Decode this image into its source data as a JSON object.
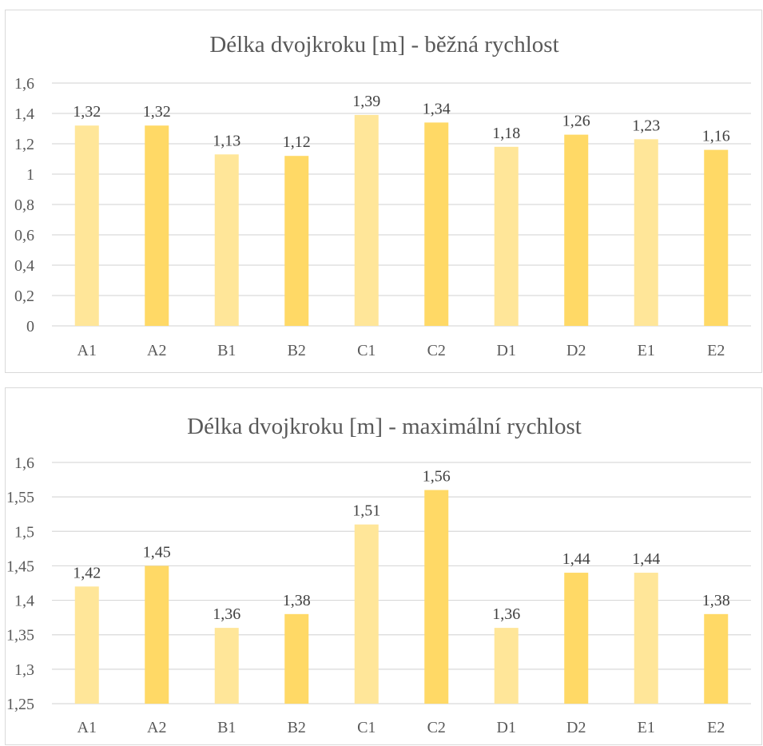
{
  "chart_data": [
    {
      "type": "bar",
      "title": "Délka dvojkroku [m] - běžná rychlost",
      "xlabel": "",
      "ylabel": "",
      "categories": [
        "A1",
        "A2",
        "B1",
        "B2",
        "C1",
        "C2",
        "D1",
        "D2",
        "E1",
        "E2"
      ],
      "values": [
        1.32,
        1.32,
        1.13,
        1.12,
        1.39,
        1.34,
        1.18,
        1.26,
        1.23,
        1.16
      ],
      "data_labels": [
        "1,32",
        "1,32",
        "1,13",
        "1,12",
        "1,39",
        "1,34",
        "1,18",
        "1,26",
        "1,23",
        "1,16"
      ],
      "ylim": [
        0,
        1.6
      ],
      "y_ticks": [
        "0",
        "0,2",
        "0,4",
        "0,6",
        "0,8",
        "1",
        "1,2",
        "1,4",
        "1,6"
      ],
      "grid": true,
      "legend": "none",
      "colors": [
        "#ffe699",
        "#ffd966"
      ]
    },
    {
      "type": "bar",
      "title": "Délka dvojkroku [m] - maximální rychlost",
      "xlabel": "",
      "ylabel": "",
      "categories": [
        "A1",
        "A2",
        "B1",
        "B2",
        "C1",
        "C2",
        "D1",
        "D2",
        "E1",
        "E2"
      ],
      "values": [
        1.42,
        1.45,
        1.36,
        1.38,
        1.51,
        1.56,
        1.36,
        1.44,
        1.44,
        1.38
      ],
      "data_labels": [
        "1,42",
        "1,45",
        "1,36",
        "1,38",
        "1,51",
        "1,56",
        "1,36",
        "1,44",
        "1,44",
        "1,38"
      ],
      "ylim": [
        1.25,
        1.6
      ],
      "y_ticks": [
        "1,25",
        "1,3",
        "1,35",
        "1,4",
        "1,45",
        "1,5",
        "1,55",
        "1,6"
      ],
      "grid": true,
      "legend": "none",
      "colors": [
        "#ffe699",
        "#ffd966"
      ]
    }
  ]
}
